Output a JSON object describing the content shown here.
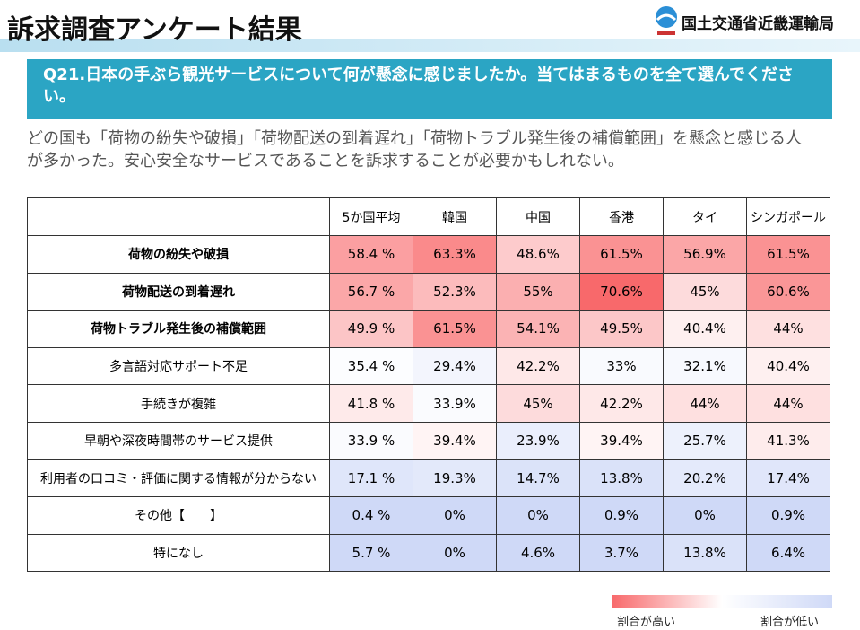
{
  "header": {
    "title": "訴求調査アンケート結果",
    "organization": "国土交通省近畿運輸局"
  },
  "question": "Q21.日本の手ぶら観光サービスについて何が懸念に感じましたか。当てはまるものを全て選んでください。",
  "summary": "どの国も「荷物の紛失や破損」「荷物配送の到着遅れ」「荷物トラブル発生後の補償範囲」を懸念と感じる人が多かった。安心安全なサービスであることを訴求することが必要かもしれない。",
  "table": {
    "columns": [
      "5か国平均",
      "韓国",
      "中国",
      "香港",
      "タイ",
      "シンガポール"
    ],
    "rows": [
      {
        "label": "荷物の紛失や破損",
        "cells": [
          "58.4 %",
          "63.3%",
          "48.6%",
          "61.5%",
          "56.9%",
          "61.5%"
        ]
      },
      {
        "label": "荷物配送の到着遅れ",
        "cells": [
          "56.7 %",
          "52.3%",
          "55%",
          "70.6%",
          "45%",
          "60.6%"
        ]
      },
      {
        "label": "荷物トラブル発生後の補償範囲",
        "cells": [
          "49.9 %",
          "61.5%",
          "54.1%",
          "49.5%",
          "40.4%",
          "44%"
        ]
      },
      {
        "label": "多言語対応サポート不足",
        "cells": [
          "35.4 %",
          "29.4%",
          "42.2%",
          "33%",
          "32.1%",
          "40.4%"
        ]
      },
      {
        "label": "手続きが複雑",
        "cells": [
          "41.8 %",
          "33.9%",
          "45%",
          "42.2%",
          "44%",
          "44%"
        ]
      },
      {
        "label": "早朝や深夜時間帯のサービス提供",
        "cells": [
          "33.9 %",
          "39.4%",
          "23.9%",
          "39.4%",
          "25.7%",
          "41.3%"
        ]
      },
      {
        "label": "利用者の口コミ・評価に関する情報が分からない",
        "cells": [
          "17.1 %",
          "19.3%",
          "14.7%",
          "13.8%",
          "20.2%",
          "17.4%"
        ]
      },
      {
        "label": "その他【　　】",
        "cells": [
          "0.4 %",
          "0%",
          "0%",
          "0.9%",
          "0%",
          "0.9%"
        ]
      },
      {
        "label": "特になし",
        "cells": [
          "5.7 %",
          "0%",
          "4.6%",
          "3.7%",
          "13.8%",
          "6.4%"
        ]
      }
    ]
  },
  "legend": {
    "high": "割合が高い",
    "low": "割合が低い"
  }
}
